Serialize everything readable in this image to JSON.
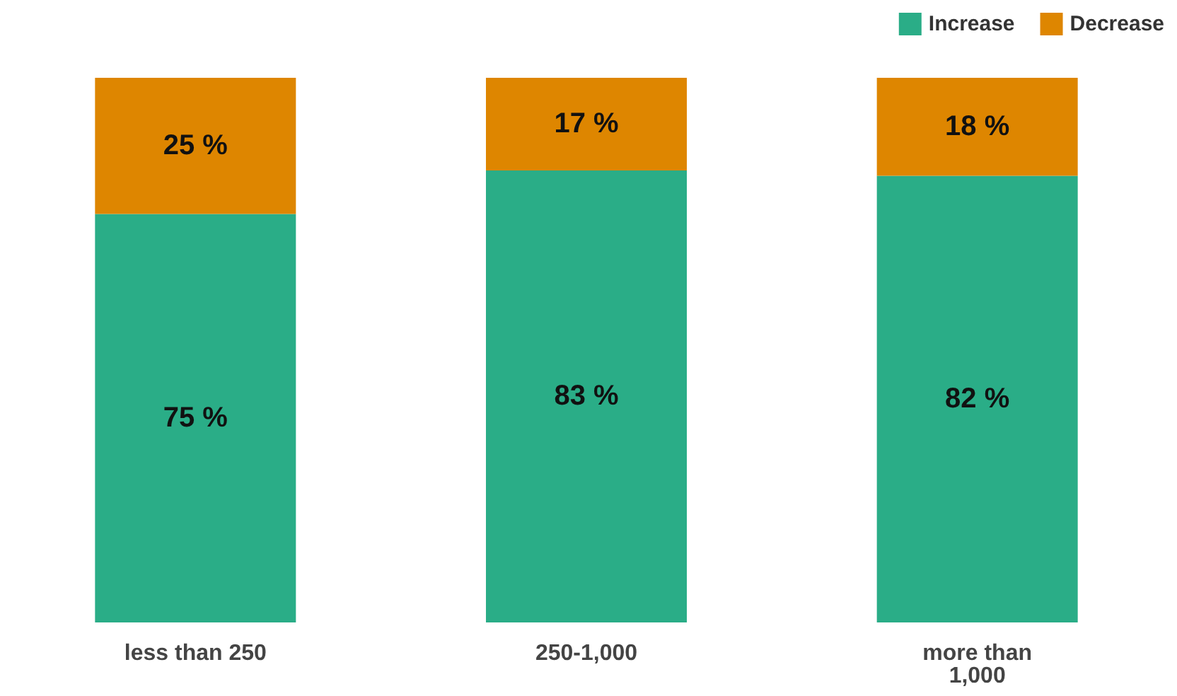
{
  "chart_data": {
    "type": "bar",
    "stacked": true,
    "categories": [
      "less than 250",
      "250-1,000",
      "more than 1,000"
    ],
    "series": [
      {
        "name": "Increase",
        "color": "#2aad87",
        "values": [
          75,
          83,
          82
        ],
        "value_labels": [
          "75 %",
          "83 %",
          "82 %"
        ]
      },
      {
        "name": "Decrease",
        "color": "#de8600",
        "values": [
          25,
          17,
          18
        ],
        "value_labels": [
          "25 %",
          "17 %",
          "18 %"
        ]
      }
    ],
    "ylim": [
      0,
      100
    ],
    "legend": "top right"
  }
}
